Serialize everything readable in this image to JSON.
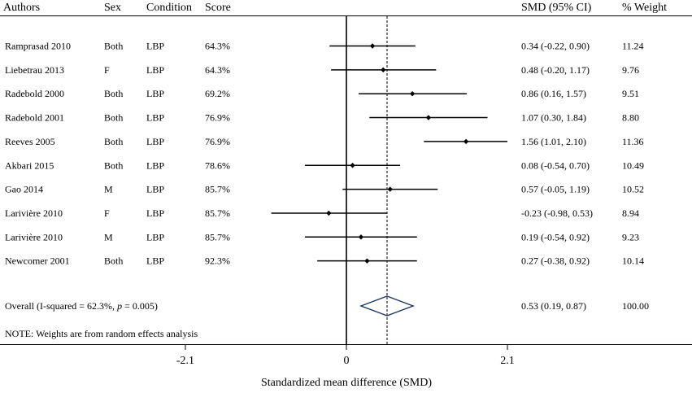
{
  "headers": {
    "authors": "Authors",
    "sex": "Sex",
    "condition": "Condition",
    "score": "Score",
    "smd": "SMD (95% CI)",
    "weight": "% Weight"
  },
  "chart_data": {
    "type": "forest",
    "xlabel": "Standardized mean difference (SMD)",
    "xlim": [
      -2.1,
      2.1
    ],
    "xticks": [
      "-2.1",
      "0",
      "2.1"
    ],
    "null_line": 0,
    "overall_line": 0.53,
    "studies": [
      {
        "author": "Ramprasad 2010",
        "sex": "Both",
        "condition": "LBP",
        "score": "64.3%",
        "smd": 0.34,
        "lo": -0.22,
        "hi": 0.9,
        "ci_text": "0.34 (-0.22, 0.90)",
        "weight": "11.24"
      },
      {
        "author": "Liebetrau 2013",
        "sex": "F",
        "condition": "LBP",
        "score": "64.3%",
        "smd": 0.48,
        "lo": -0.2,
        "hi": 1.17,
        "ci_text": "0.48 (-0.20, 1.17)",
        "weight": "9.76"
      },
      {
        "author": "Radebold 2000",
        "sex": "Both",
        "condition": "LBP",
        "score": "69.2%",
        "smd": 0.86,
        "lo": 0.16,
        "hi": 1.57,
        "ci_text": "0.86 (0.16, 1.57)",
        "weight": "9.51"
      },
      {
        "author": "Radebold 2001",
        "sex": "Both",
        "condition": "LBP",
        "score": "76.9%",
        "smd": 1.07,
        "lo": 0.3,
        "hi": 1.84,
        "ci_text": "1.07 (0.30, 1.84)",
        "weight": "8.80"
      },
      {
        "author": "Reeves 2005",
        "sex": "Both",
        "condition": "LBP",
        "score": "76.9%",
        "smd": 1.56,
        "lo": 1.01,
        "hi": 2.1,
        "ci_text": "1.56 (1.01, 2.10)",
        "weight": "11.36"
      },
      {
        "author": "Akbari 2015",
        "sex": "Both",
        "condition": "LBP",
        "score": "78.6%",
        "smd": 0.08,
        "lo": -0.54,
        "hi": 0.7,
        "ci_text": "0.08 (-0.54, 0.70)",
        "weight": "10.49"
      },
      {
        "author": "Gao 2014",
        "sex": "M",
        "condition": "LBP",
        "score": "85.7%",
        "smd": 0.57,
        "lo": -0.05,
        "hi": 1.19,
        "ci_text": "0.57 (-0.05, 1.19)",
        "weight": "10.52"
      },
      {
        "author": "Larivière 2010",
        "sex": "F",
        "condition": "LBP",
        "score": "85.7%",
        "smd": -0.23,
        "lo": -0.98,
        "hi": 0.53,
        "ci_text": "-0.23 (-0.98, 0.53)",
        "weight": "8.94"
      },
      {
        "author": "Larivière 2010",
        "sex": "M",
        "condition": "LBP",
        "score": "85.7%",
        "smd": 0.19,
        "lo": -0.54,
        "hi": 0.92,
        "ci_text": "0.19 (-0.54, 0.92)",
        "weight": "9.23"
      },
      {
        "author": "Newcomer 2001",
        "sex": "Both",
        "condition": "LBP",
        "score": "92.3%",
        "smd": 0.27,
        "lo": -0.38,
        "hi": 0.92,
        "ci_text": "0.27 (-0.38, 0.92)",
        "weight": "10.14"
      }
    ],
    "overall": {
      "label_prefix": "Overall (I-squared = 62.3%, ",
      "label_p": "p",
      "label_suffix": " = 0.005)",
      "smd": 0.53,
      "lo": 0.19,
      "hi": 0.87,
      "ci_text": "0.53 (0.19, 0.87)",
      "weight": "100.00"
    },
    "note": "NOTE: Weights are from random effects analysis",
    "colors": {
      "diamond": "#1f3864",
      "line": "#000000"
    }
  }
}
